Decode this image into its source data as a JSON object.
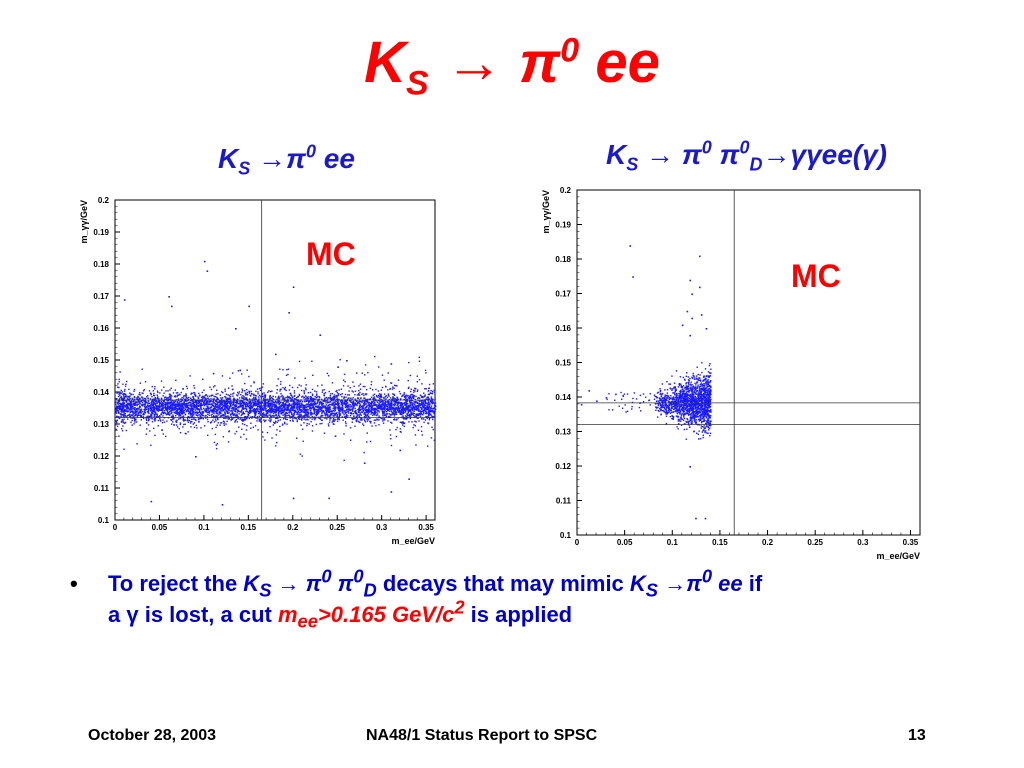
{
  "slide": {
    "title_main": "K",
    "title_sub": "S",
    "title_arrow": "→",
    "title_pi": "π",
    "title_sup": "0",
    "title_rest": "ee"
  },
  "left_plot": {
    "title_k": "K",
    "title_sub": "S",
    "title_arrow": "→",
    "title_pi": "π",
    "title_sup": "0",
    "title_rest": "ee",
    "mc_label": "MC"
  },
  "right_plot": {
    "title_k": "K",
    "title_sub": "S",
    "title_arrow": "→",
    "title_pi1": "π",
    "title_sup1": "0",
    "title_pi2": "π",
    "title_sup2": "0",
    "title_subD": "D",
    "title_rest": "→γγee(γ)",
    "mc_label": "MC"
  },
  "chart_data": [
    {
      "type": "scatter",
      "name_hint": "left",
      "xlabel": "m_ee/GeV",
      "ylabel": "m_γγ/GeV",
      "xlim": [
        0,
        0.36
      ],
      "ylim": [
        0.1,
        0.2
      ],
      "x_ticks": [
        "0",
        "0.05",
        "0.1",
        "0.15",
        "0.2",
        "0.25",
        "0.3",
        "0.35"
      ],
      "x_tick_values": [
        0,
        0.05,
        0.1,
        0.15,
        0.2,
        0.25,
        0.3,
        0.35
      ],
      "y_ticks": [
        "0.1",
        "0.11",
        "0.12",
        "0.13",
        "0.14",
        "0.15",
        "0.16",
        "0.17",
        "0.18",
        "0.19",
        "0.2"
      ],
      "y_tick_values": [
        0.1,
        0.11,
        0.12,
        0.13,
        0.14,
        0.15,
        0.16,
        0.17,
        0.18,
        0.19,
        0.2
      ],
      "cut_x": 0.165,
      "cut_y": [
        0.1375,
        0.132
      ],
      "band": {
        "x_range": [
          0,
          0.36
        ],
        "y_center": 0.1355,
        "y_halfwidth": 0.0022,
        "count": 5000
      },
      "outliers": [
        [
          0.01,
          0.169
        ],
        [
          0.06,
          0.17
        ],
        [
          0.063,
          0.167
        ],
        [
          0.1,
          0.181
        ],
        [
          0.103,
          0.178
        ],
        [
          0.15,
          0.167
        ],
        [
          0.135,
          0.16
        ],
        [
          0.2,
          0.173
        ],
        [
          0.195,
          0.165
        ],
        [
          0.23,
          0.158
        ],
        [
          0.18,
          0.152
        ],
        [
          0.26,
          0.15
        ],
        [
          0.31,
          0.149
        ],
        [
          0.04,
          0.106
        ],
        [
          0.12,
          0.105
        ],
        [
          0.24,
          0.107
        ],
        [
          0.28,
          0.118
        ],
        [
          0.31,
          0.109
        ],
        [
          0.33,
          0.113
        ],
        [
          0.09,
          0.12
        ],
        [
          0.14,
          0.147
        ],
        [
          0.32,
          0.122
        ],
        [
          0.2,
          0.107
        ],
        [
          0.25,
          0.148
        ],
        [
          0.11,
          0.146
        ]
      ]
    },
    {
      "type": "scatter",
      "name_hint": "right",
      "xlabel": "m_ee/GeV",
      "ylabel": "m_γγ/GeV",
      "xlim": [
        0,
        0.36
      ],
      "ylim": [
        0.1,
        0.2
      ],
      "x_ticks": [
        "0",
        "0.05",
        "0.1",
        "0.15",
        "0.2",
        "0.25",
        "0.3",
        "0.35"
      ],
      "x_tick_values": [
        0,
        0.05,
        0.1,
        0.15,
        0.2,
        0.25,
        0.3,
        0.35
      ],
      "y_ticks": [
        "0.1",
        "0.11",
        "0.12",
        "0.13",
        "0.14",
        "0.15",
        "0.16",
        "0.17",
        "0.18",
        "0.19",
        "0.2"
      ],
      "y_tick_values": [
        0.1,
        0.11,
        0.12,
        0.13,
        0.14,
        0.15,
        0.16,
        0.17,
        0.18,
        0.19,
        0.2
      ],
      "cut_x": 0.165,
      "cut_y": [
        0.1383,
        0.132
      ],
      "cluster": {
        "x_range": [
          0.08,
          0.14
        ],
        "y_center": 0.1385,
        "y_halfwidth": 0.004,
        "count": 1500
      },
      "outliers": [
        [
          0.055,
          0.184
        ],
        [
          0.058,
          0.175
        ],
        [
          0.128,
          0.181
        ],
        [
          0.118,
          0.174
        ],
        [
          0.12,
          0.17
        ],
        [
          0.115,
          0.165
        ],
        [
          0.128,
          0.172
        ],
        [
          0.12,
          0.163
        ],
        [
          0.118,
          0.158
        ],
        [
          0.135,
          0.16
        ],
        [
          0.11,
          0.161
        ],
        [
          0.13,
          0.164
        ],
        [
          0.04,
          0.141
        ],
        [
          0.03,
          0.14
        ],
        [
          0.012,
          0.142
        ],
        [
          0.02,
          0.139
        ],
        [
          0.118,
          0.12
        ],
        [
          0.124,
          0.105
        ],
        [
          0.134,
          0.105
        ],
        [
          0.004,
          0.138
        ]
      ]
    }
  ],
  "bullet": {
    "marker": "•",
    "t1": "To reject the ",
    "t2k": "K",
    "t2s": "S",
    "t3": " → ",
    "t4pi": "π",
    "t4sup": "0",
    "t5": " ",
    "t6pi": "π",
    "t6sup": "0",
    "t6sub": "D",
    "t7": "  decays that may mimic ",
    "t8k": "K",
    "t8s": "S",
    "t9": " →",
    "t10pi": "π",
    "t10sup": "0",
    "t11": " ee",
    "t12": " if",
    "t13": "a ",
    "t14": "γ",
    "t15": " is lost, a cut ",
    "t16m": "m",
    "t16sub": "ee",
    "t16rest": ">0.165 GeV/c",
    "t16sup": "2",
    "t17": " is applied"
  },
  "footer": {
    "date": "October 28, 2003",
    "center": "NA48/1 Status Report to SPSC",
    "page": "13"
  }
}
